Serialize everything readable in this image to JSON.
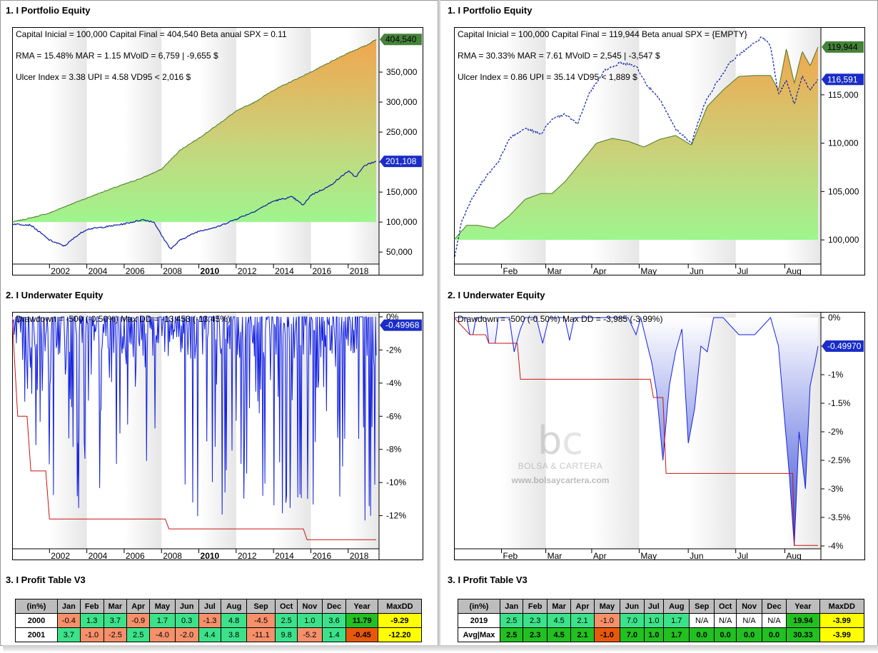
{
  "colors": {
    "pos_light": "#3ce28a",
    "neg_light": "#f5906a",
    "pos_dark": "#22c021",
    "neg_dark": "#e8580a",
    "yellow": "#ffff00",
    "na": "#ffffff",
    "header": "#bdbdbd",
    "equity": "#0b1ba8",
    "badge": "#1a2dc8"
  },
  "left": {
    "equity": {
      "title": "1. I Portfolio Equity",
      "info_lines": [
        "Capital Inicial = 100,000  Capital Final = 404,540  Beta anual SPX = 0.11",
        "RMA = 15.48%   MAR = 1.15   MVolD = 6,759 | -9,655 $",
        "Ulcer Index = 3.38   UPI = 4.58   VD95 < 2,016 $"
      ],
      "badge_top": "404,540",
      "badge_bottom": "201,108"
    },
    "underwater": {
      "title": "2. I Underwater Equity",
      "info": "Drawdown = -500 (-0.50%)      Max DD = -13,453 (-13.45%)",
      "badge": "-0.49968"
    },
    "table": {
      "title": "3. I Profit Table V3",
      "headers": [
        "(in%)",
        "Jan",
        "Feb",
        "Mar",
        "Apr",
        "May",
        "Jun",
        "Jul",
        "Aug",
        "Sep",
        "Oct",
        "Nov",
        "Dec",
        "Year",
        "MaxDD"
      ],
      "rows": [
        [
          "2000",
          "-0.4",
          "1.3",
          "3.7",
          "-0.9",
          "1.7",
          "0.3",
          "-1.3",
          "4.8",
          "-4.5",
          "2.5",
          "1.0",
          "3.6",
          "11.79",
          "-9.29"
        ],
        [
          "2001",
          "3.7",
          "-1.0",
          "-2.5",
          "2.5",
          "-4.0",
          "-2.0",
          "4.4",
          "3.8",
          "-11.1",
          "9.8",
          "-5.2",
          "1.4",
          "-0.45",
          "-12.20"
        ]
      ]
    }
  },
  "right": {
    "equity": {
      "title": "1. I Portfolio Equity",
      "info_lines": [
        "Capital Inicial = 100,000  Capital Final = 119,944  Beta anual SPX = {EMPTY}",
        "RMA = 30.33%   MAR = 7.61   MVolD = 2,545 | -3,547 $",
        "Ulcer Index = 0.86   UPI = 35.14   VD95 < 1,889 $"
      ],
      "badge_top": "119,944",
      "badge_bottom": "116,591"
    },
    "underwater": {
      "title": "2. I Underwater Equity",
      "info": "Drawdown = -500 (-0.50%)      Max DD = -3,985 (-3.99%)",
      "badge": "-0.49970"
    },
    "watermark": {
      "brand": "BOLSA & CARTERA",
      "url": "www.bolsaycartera.com"
    },
    "table": {
      "title": "3. I Profit Table V3",
      "headers": [
        "(in%)",
        "Jan",
        "Feb",
        "Mar",
        "Apr",
        "May",
        "Jun",
        "Jul",
        "Aug",
        "Sep",
        "Oct",
        "Nov",
        "Dec",
        "Year",
        "MaxDD"
      ],
      "rows": [
        [
          "2019",
          "2.5",
          "2.3",
          "4.5",
          "2.1",
          "-1.0",
          "7.0",
          "1.0",
          "1.7",
          "N/A",
          "N/A",
          "N/A",
          "N/A",
          "19.94",
          "-3.99"
        ],
        [
          "Avg|Max",
          "2.5",
          "2.3",
          "4.5",
          "2.1",
          "-1.0",
          "7.0",
          "1.0",
          "1.7",
          "0.0",
          "0.0",
          "0.0",
          "0.0",
          "30.33",
          "-3.99"
        ]
      ]
    }
  },
  "chart_data": [
    {
      "type": "area",
      "panel": "left-equity",
      "x_range": [
        2000,
        2019.5
      ],
      "xticks": [
        "2002",
        "2004",
        "2006",
        "2008",
        "2010",
        "2012",
        "2014",
        "2016",
        "2018"
      ],
      "yticks": [
        "50,000",
        "100,000",
        "150,000",
        "200,000",
        "250,000",
        "300,000",
        "350,000"
      ],
      "ytick_values": [
        50000,
        100000,
        150000,
        200000,
        250000,
        300000,
        350000
      ],
      "ylim": [
        30000,
        425000
      ],
      "series": [
        {
          "kind": "area",
          "points": [
            [
              2000,
              100000
            ],
            [
              2001,
              107000
            ],
            [
              2002,
              115000
            ],
            [
              2003,
              128000
            ],
            [
              2004,
              140000
            ],
            [
              2005,
              152000
            ],
            [
              2006,
              163000
            ],
            [
              2007,
              174000
            ],
            [
              2008,
              188000
            ],
            [
              2009,
              220000
            ],
            [
              2010,
              240000
            ],
            [
              2011,
              262000
            ],
            [
              2012,
              285000
            ],
            [
              2013,
              300000
            ],
            [
              2014,
              320000
            ],
            [
              2015,
              335000
            ],
            [
              2016,
              350000
            ],
            [
              2017,
              366000
            ],
            [
              2018,
              382000
            ],
            [
              2019,
              395000
            ],
            [
              2019.5,
              404540
            ]
          ]
        },
        {
          "kind": "line",
          "points": [
            [
              2000,
              97000
            ],
            [
              2001,
              95000
            ],
            [
              2002,
              70000
            ],
            [
              2002.8,
              60000
            ],
            [
              2003.5,
              78000
            ],
            [
              2004,
              88000
            ],
            [
              2005,
              92000
            ],
            [
              2006,
              97000
            ],
            [
              2007,
              104000
            ],
            [
              2007.6,
              100000
            ],
            [
              2008,
              78000
            ],
            [
              2008.5,
              55000
            ],
            [
              2009,
              70000
            ],
            [
              2010,
              85000
            ],
            [
              2011,
              92000
            ],
            [
              2012,
              105000
            ],
            [
              2013,
              118000
            ],
            [
              2014,
              135000
            ],
            [
              2015,
              142000
            ],
            [
              2015.6,
              128000
            ],
            [
              2016,
              145000
            ],
            [
              2017,
              160000
            ],
            [
              2018,
              185000
            ],
            [
              2018.4,
              175000
            ],
            [
              2018.9,
              195000
            ],
            [
              2019.5,
              201108
            ]
          ]
        }
      ]
    },
    {
      "type": "area",
      "panel": "right-equity",
      "xticks": [
        "Feb",
        "Mar",
        "Apr",
        "May",
        "Jun",
        "Jul",
        "Aug"
      ],
      "x_range": [
        0,
        230
      ],
      "yticks": [
        "100,000",
        "105,000",
        "110,000",
        "115,000"
      ],
      "ytick_values": [
        100000,
        105000,
        110000,
        115000
      ],
      "ylim": [
        97500,
        122000
      ],
      "series": [
        {
          "kind": "area",
          "points": [
            [
              0,
              100000
            ],
            [
              8,
              101500
            ],
            [
              15,
              101500
            ],
            [
              25,
              101200
            ],
            [
              35,
              102500
            ],
            [
              45,
              104200
            ],
            [
              55,
              104800
            ],
            [
              62,
              104800
            ],
            [
              70,
              106000
            ],
            [
              80,
              108000
            ],
            [
              90,
              110000
            ],
            [
              100,
              110500
            ],
            [
              110,
              110200
            ],
            [
              120,
              109600
            ],
            [
              130,
              110400
            ],
            [
              140,
              110800
            ],
            [
              150,
              109800
            ],
            [
              160,
              113800
            ],
            [
              170,
              115500
            ],
            [
              180,
              116900
            ],
            [
              190,
              117000
            ],
            [
              200,
              117000
            ],
            [
              205,
              115500
            ],
            [
              210,
              119800
            ],
            [
              215,
              116200
            ],
            [
              220,
              119500
            ],
            [
              225,
              118000
            ],
            [
              230,
              119944
            ]
          ]
        },
        {
          "kind": "line",
          "points": [
            [
              0,
              98000
            ],
            [
              5,
              102000
            ],
            [
              12,
              104500
            ],
            [
              20,
              106500
            ],
            [
              28,
              108000
            ],
            [
              35,
              110500
            ],
            [
              45,
              111500
            ],
            [
              55,
              111000
            ],
            [
              62,
              112500
            ],
            [
              70,
              113000
            ],
            [
              78,
              112000
            ],
            [
              85,
              115000
            ],
            [
              95,
              117500
            ],
            [
              105,
              118300
            ],
            [
              115,
              118000
            ],
            [
              122,
              116000
            ],
            [
              130,
              114500
            ],
            [
              140,
              111500
            ],
            [
              150,
              110000
            ],
            [
              158,
              114000
            ],
            [
              165,
              116000
            ],
            [
              175,
              118500
            ],
            [
              185,
              119800
            ],
            [
              195,
              121000
            ],
            [
              200,
              120000
            ],
            [
              205,
              115000
            ],
            [
              210,
              116500
            ],
            [
              215,
              114000
            ],
            [
              220,
              117000
            ],
            [
              225,
              115500
            ],
            [
              230,
              116591
            ]
          ]
        }
      ]
    },
    {
      "type": "area",
      "panel": "left-underwater",
      "x_range": [
        2000,
        2019.5
      ],
      "xticks": [
        "2002",
        "2004",
        "2006",
        "2008",
        "2010",
        "2012",
        "2014",
        "2016",
        "2018"
      ],
      "yticks": [
        "0%",
        "-2%",
        "-4%",
        "-6%",
        "-8%",
        "-10%",
        "-12%"
      ],
      "ytick_values": [
        0,
        -2,
        -4,
        -6,
        -8,
        -10,
        -12
      ],
      "ylim": [
        -14,
        0.3
      ],
      "series": [
        {
          "kind": "drawdown",
          "min_dd": -13.45
        },
        {
          "kind": "max_dd_line",
          "points": [
            [
              2000,
              0
            ],
            [
              2000.3,
              -6
            ],
            [
              2000.8,
              -6
            ],
            [
              2001,
              -9.3
            ],
            [
              2001.8,
              -9.3
            ],
            [
              2002,
              -12.2
            ],
            [
              2008.2,
              -12.2
            ],
            [
              2008.4,
              -12.8
            ],
            [
              2015.6,
              -12.8
            ],
            [
              2015.8,
              -13.45
            ],
            [
              2019.5,
              -13.45
            ]
          ]
        }
      ]
    },
    {
      "type": "area",
      "panel": "right-underwater",
      "x_range": [
        0,
        230
      ],
      "xticks": [
        "Feb",
        "Mar",
        "Apr",
        "May",
        "Jun",
        "Jul",
        "Aug"
      ],
      "yticks": [
        "0%",
        "-0.5%",
        "-1%",
        "-1.5%",
        "-2%",
        "-2.5%",
        "-3%",
        "-3.5%",
        "-4%"
      ],
      "ytick_values": [
        0,
        -0.5,
        -1,
        -1.5,
        -2,
        -2.5,
        -3,
        -3.5,
        -4
      ],
      "ylim": [
        -4.05,
        0.1
      ],
      "series": [
        {
          "kind": "drawdown",
          "points": [
            [
              0,
              0
            ],
            [
              8,
              0
            ],
            [
              10,
              -0.3
            ],
            [
              12,
              -0.3
            ],
            [
              14,
              0
            ],
            [
              20,
              0
            ],
            [
              22,
              -0.45
            ],
            [
              26,
              -0.45
            ],
            [
              28,
              0
            ],
            [
              35,
              0
            ],
            [
              38,
              -0.6
            ],
            [
              42,
              -0.2
            ],
            [
              45,
              0
            ],
            [
              52,
              0
            ],
            [
              56,
              -0.45
            ],
            [
              60,
              0
            ],
            [
              70,
              0
            ],
            [
              73,
              -0.4
            ],
            [
              76,
              0
            ],
            [
              90,
              0
            ],
            [
              100,
              0
            ],
            [
              110,
              0
            ],
            [
              115,
              -0.3
            ],
            [
              118,
              0
            ],
            [
              125,
              -0.8
            ],
            [
              128,
              -1.3
            ],
            [
              132,
              -2.5
            ],
            [
              136,
              -1.2
            ],
            [
              140,
              -0.6
            ],
            [
              144,
              -0.2
            ],
            [
              148,
              -2.2
            ],
            [
              152,
              -1.6
            ],
            [
              156,
              -0.5
            ],
            [
              160,
              -0.6
            ],
            [
              164,
              0
            ],
            [
              170,
              0
            ],
            [
              180,
              -0.3
            ],
            [
              190,
              -0.3
            ],
            [
              200,
              0
            ],
            [
              205,
              -0.5
            ],
            [
              208,
              -1.5
            ],
            [
              212,
              -2.8
            ],
            [
              215,
              -4.0
            ],
            [
              218,
              -2.0
            ],
            [
              222,
              -3.0
            ],
            [
              225,
              -1.2
            ],
            [
              228,
              -0.8
            ],
            [
              230,
              -0.5
            ]
          ]
        },
        {
          "kind": "max_dd_line",
          "points": [
            [
              0,
              0
            ],
            [
              10,
              -0.3
            ],
            [
              20,
              -0.3
            ],
            [
              22,
              -0.45
            ],
            [
              40,
              -0.45
            ],
            [
              42,
              -1.08
            ],
            [
              80,
              -1.08
            ],
            [
              83,
              -1.08
            ],
            [
              124,
              -1.08
            ],
            [
              126,
              -1.4
            ],
            [
              132,
              -1.4
            ],
            [
              134,
              -2.73
            ],
            [
              214,
              -2.73
            ],
            [
              215,
              -3.99
            ],
            [
              230,
              -3.99
            ]
          ]
        }
      ]
    }
  ]
}
